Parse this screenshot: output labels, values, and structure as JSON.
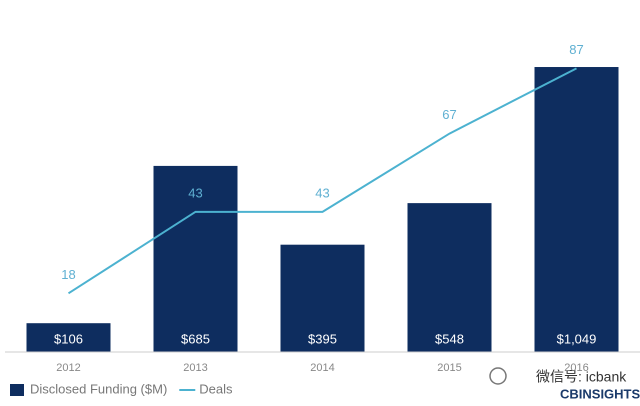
{
  "chart_data": {
    "type": "bar",
    "categories": [
      "2012",
      "2013",
      "2014",
      "2015",
      "2016"
    ],
    "series": [
      {
        "name": "Disclosed Funding ($M)",
        "type": "bar",
        "color": "#0e2d5f",
        "values": [
          106,
          685,
          395,
          548,
          1049
        ],
        "value_labels": [
          "$106",
          "$685",
          "$395",
          "$548",
          "$1,049"
        ]
      },
      {
        "name": "Deals",
        "type": "line",
        "axis": "y2",
        "color": "#4cb2d0",
        "values": [
          18,
          43,
          43,
          67,
          87
        ]
      }
    ],
    "ylim": [
      0,
      1200
    ],
    "y2lim": [
      0,
      100
    ],
    "grid": false,
    "legend": "bottom-left"
  },
  "watermark": {
    "wechat": "微信号: icbank",
    "logo": "CBINSIGHTS"
  }
}
